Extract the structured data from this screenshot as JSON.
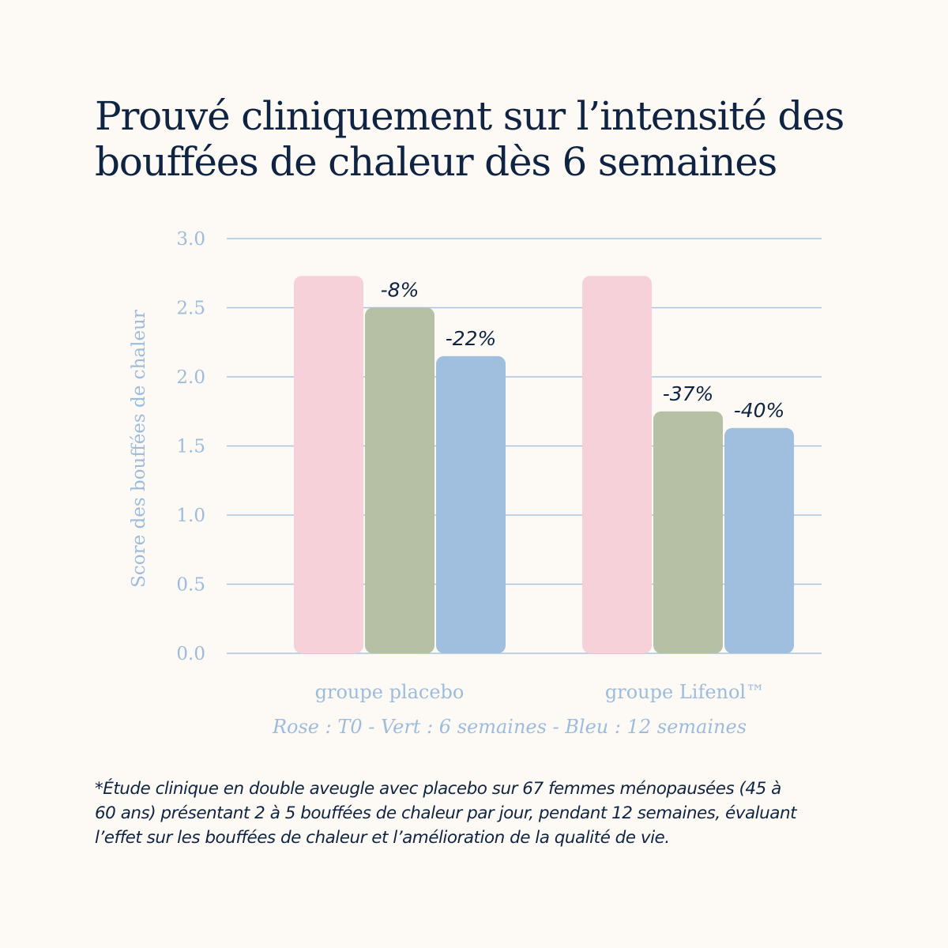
{
  "heading": {
    "lines": [
      "Prouvé cliniquement sur l’intensité des",
      "bouffées de chaleur dès 6 semaines"
    ]
  },
  "colors": {
    "background": "#fdfaf5",
    "title": "#0f2442",
    "axis_text": "#9dbcdc",
    "grid": "#a8c4e0",
    "t0": "#f7d1da",
    "week6": "#b6c0a4",
    "week12": "#a0bfde",
    "annotation": "#0f2442"
  },
  "chart_data": {
    "type": "bar",
    "ylabel": "Score des bouffées de chaleur",
    "ylim": [
      0,
      3.0
    ],
    "yticks": [
      "0.0",
      "0.5",
      "1.0",
      "1.5",
      "2.0",
      "2.5",
      "3.0"
    ],
    "grid": true,
    "categories": [
      "groupe placebo",
      "groupe Lifenol™"
    ],
    "series": [
      {
        "color": "#f7d1da",
        "values": [
          2.73,
          2.73
        ],
        "labels": [
          "",
          ""
        ]
      },
      {
        "color": "#b6c0a4",
        "values": [
          2.5,
          1.75
        ],
        "labels": [
          "-8%",
          "-37%"
        ]
      },
      {
        "color": "#a0bfde",
        "values": [
          2.15,
          1.63
        ],
        "labels": [
          "-22%",
          "-40%"
        ]
      }
    ],
    "legend_note": "Rose : T0 - Vert : 6 semaines - Bleu : 12 semaines"
  },
  "footnote": {
    "lines": [
      "*Étude clinique en double aveugle avec placebo sur 67 femmes ménopausées (45 à",
      "60 ans) présentant 2 à 5 bouffées de chaleur par jour, pendant 12 semaines, évaluant",
      "l’effet sur les bouffées de chaleur et l’amélioration de la qualité de vie."
    ]
  }
}
